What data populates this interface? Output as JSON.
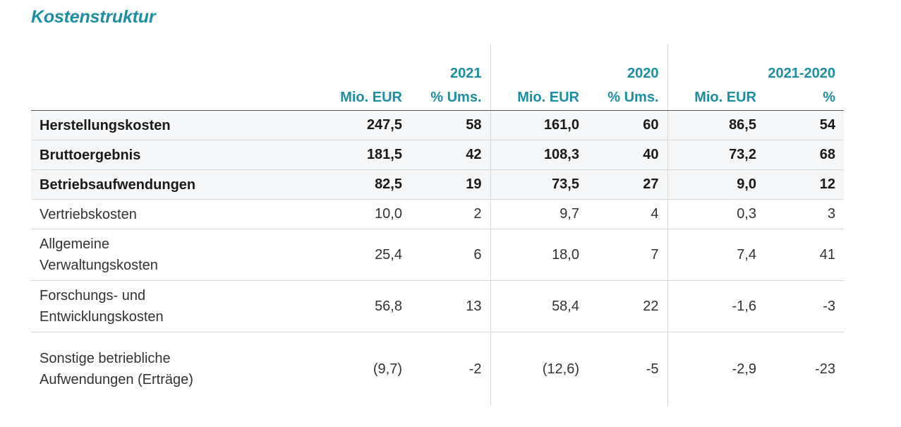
{
  "title": "Kostenstruktur",
  "header": {
    "years": [
      "2021",
      "2020",
      "2021-2020"
    ],
    "subheaders": [
      "Mio. EUR",
      "% Ums.",
      "Mio. EUR",
      "% Ums.",
      "Mio. EUR",
      "%"
    ]
  },
  "rows": [
    {
      "label": "Herstellungskosten",
      "values": [
        "247,5",
        "58",
        "161,0",
        "60",
        "86,5",
        "54"
      ],
      "bold": true
    },
    {
      "label": "Bruttoergebnis",
      "values": [
        "181,5",
        "42",
        "108,3",
        "40",
        "73,2",
        "68"
      ],
      "bold": true
    },
    {
      "label": "Betriebsaufwendungen",
      "values": [
        "82,5",
        "19",
        "73,5",
        "27",
        "9,0",
        "12"
      ],
      "bold": true
    },
    {
      "label": "Vertriebskosten",
      "values": [
        "10,0",
        "2",
        "9,7",
        "4",
        "0,3",
        "3"
      ],
      "bold": false
    },
    {
      "label": "Allgemeine Verwaltungskosten",
      "values": [
        "25,4",
        "6",
        "18,0",
        "7",
        "7,4",
        "41"
      ],
      "bold": false
    },
    {
      "label": "Forschungs- und Entwicklungskosten",
      "values": [
        "56,8",
        "13",
        "58,4",
        "22",
        "-1,6",
        "-3"
      ],
      "bold": false
    },
    {
      "label": "Sonstige betriebliche Aufwendungen (Erträge)",
      "values": [
        "(9,7)",
        "-2",
        "(12,6)",
        "-5",
        "-2,9",
        "-23"
      ],
      "bold": false
    }
  ]
}
